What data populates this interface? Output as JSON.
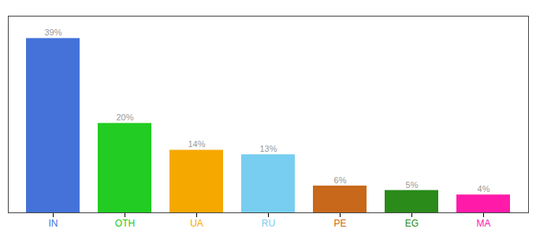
{
  "chart_data": {
    "type": "bar",
    "categories": [
      "IN",
      "OTH",
      "UA",
      "RU",
      "PE",
      "EG",
      "MA"
    ],
    "values": [
      39,
      20,
      14,
      13,
      6,
      5,
      4
    ],
    "value_labels": [
      "39%",
      "20%",
      "14%",
      "13%",
      "6%",
      "5%",
      "4%"
    ],
    "colors": [
      "#4472d8",
      "#22cc22",
      "#f5a800",
      "#78cef0",
      "#c8681a",
      "#2a8a1a",
      "#ff1aaa"
    ],
    "ylim": [
      0,
      44
    ],
    "data_labels": true,
    "tick_labels": "x"
  }
}
